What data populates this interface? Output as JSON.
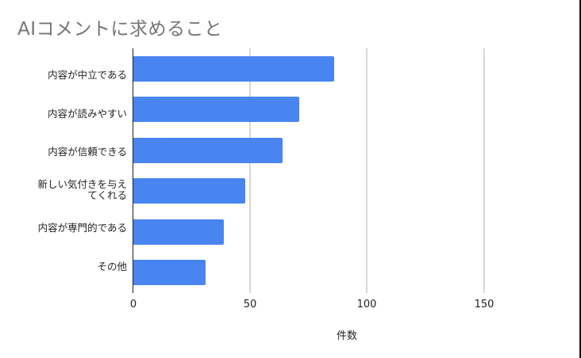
{
  "chart_data": {
    "type": "bar",
    "orientation": "horizontal",
    "title": "AIコメントに求めること",
    "xlabel": "件数",
    "ylabel": "",
    "categories": [
      "内容が中立である",
      "内容が読みやすい",
      "内容が信頼できる",
      "新しい気付きを与えてくれる",
      "内容が専門的である",
      "その他"
    ],
    "category_label_lines": [
      [
        "内容が中立である"
      ],
      [
        "内容が読みやすい"
      ],
      [
        "内容が信頼できる"
      ],
      [
        "新しい気付きを与え",
        "てくれる"
      ],
      [
        "内容が専門的である"
      ],
      [
        "その他"
      ]
    ],
    "values": [
      86,
      71,
      64,
      48,
      39,
      31
    ],
    "xlim": [
      0,
      150
    ],
    "x_ticks": [
      "0",
      "50",
      "100",
      "150"
    ],
    "grid": true,
    "legend": null,
    "colors": {
      "bar": "#4885f0",
      "title": "#757575",
      "grid": "#d9d9d9",
      "axis": "#222222"
    }
  },
  "labels": {
    "title": "AIコメントに求めること",
    "xlabel": "件数",
    "ticks": [
      "0",
      "50",
      "100",
      "150"
    ],
    "cat0": "内容が中立である",
    "cat1": "内容が読みやすい",
    "cat2": "内容が信頼できる",
    "cat3a": "新しい気付きを与え",
    "cat3b": "てくれる",
    "cat4": "内容が専門的である",
    "cat5": "その他"
  }
}
